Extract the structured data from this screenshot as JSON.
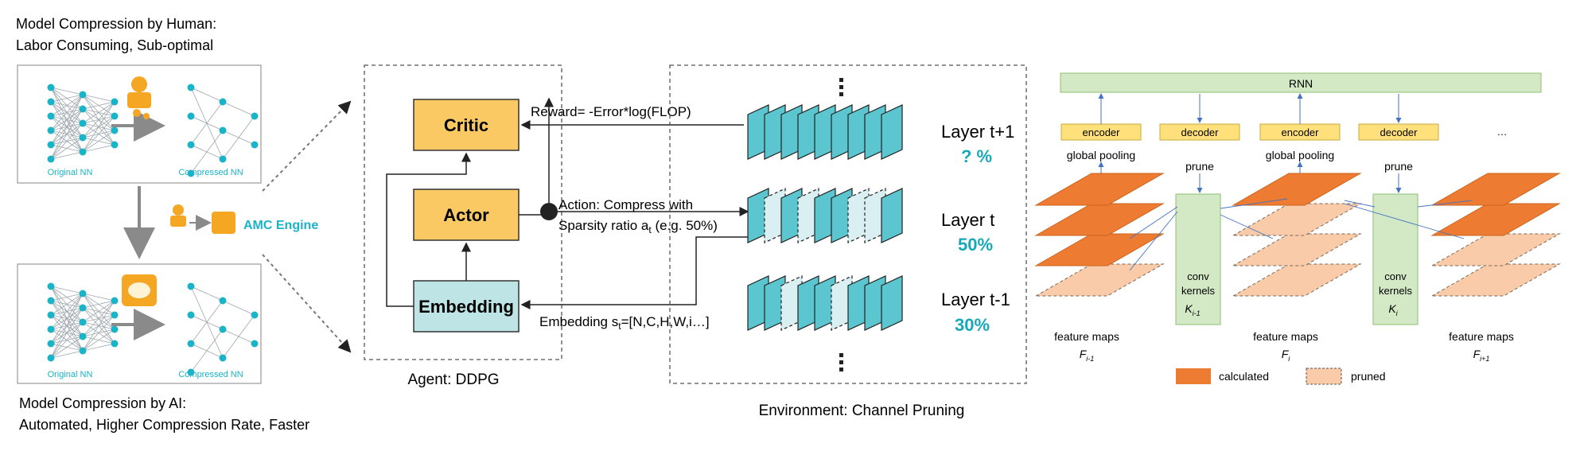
{
  "left": {
    "human_title_1": "Model Compression by Human:",
    "human_title_2": "Labor Consuming, Sub-optimal",
    "ai_title_1": "Model Compression by AI:",
    "ai_title_2": "Automated, Higher Compression Rate, Faster",
    "original_nn": "Original NN",
    "compressed_nn": "Compressed NN",
    "engine_label": "AMC Engine"
  },
  "agent": {
    "caption": "Agent: DDPG",
    "critic": "Critic",
    "actor": "Actor",
    "embedding": "Embedding",
    "reward": "Reward= -Error*log(FLOP)",
    "action_1": "Action: Compress with",
    "action_2_pre": "Sparsity ratio a",
    "action_2_sub": "t",
    "action_2_post": " (e.g. 50%)",
    "embed_pre": "Embedding s",
    "embed_sub": "t",
    "embed_post": "=[N,C,H,W,i…]"
  },
  "environment": {
    "caption": "Environment: Channel Pruning",
    "layers": [
      {
        "name": "Layer t+1",
        "ratio": "? %"
      },
      {
        "name": "Layer t",
        "ratio": "50%"
      },
      {
        "name": "Layer t-1",
        "ratio": "30%"
      }
    ]
  },
  "rnn_panel": {
    "rnn": "RNN",
    "encoder": "encoder",
    "decoder": "decoder",
    "ellipsis": "…",
    "global_pooling": "global pooling",
    "prune": "prune",
    "conv_kernels_1": "conv",
    "conv_kernels_2": "kernels",
    "k_prev": "K",
    "k_prev_sub": "i-1",
    "k_cur": "K",
    "k_cur_sub": "i",
    "feature_maps": "feature maps",
    "f_prev": "F",
    "f_prev_sub": "i-1",
    "f_cur": "F",
    "f_cur_sub": "i",
    "f_next": "F",
    "f_next_sub": "i+1",
    "legend_calculated": "calculated",
    "legend_pruned": "pruned"
  },
  "colors": {
    "teal": "#1ab3c7",
    "box_yellow": "#fbc964",
    "embed_teal": "#bfe4e6",
    "rnn_green": "#d3e9c6",
    "enc_yellow": "#ffe07a",
    "calc_orange": "#ee7b32",
    "pruned_peach": "#f9cba8",
    "ratio_teal": "#18a8b8"
  }
}
